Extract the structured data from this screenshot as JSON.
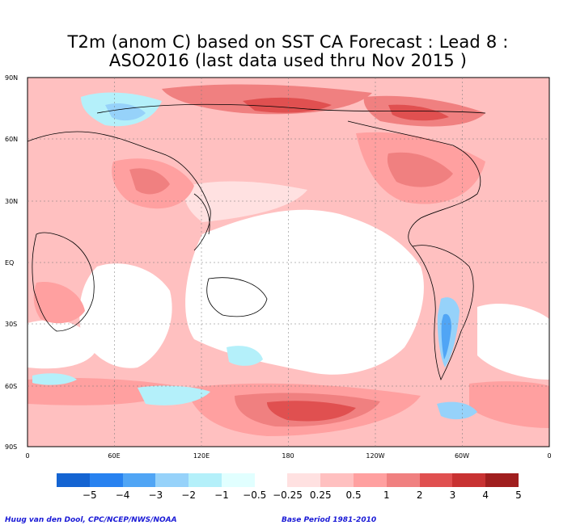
{
  "title_line1": "T2m (anom C) based on SST CA Forecast : Lead 8 :",
  "title_line2": "ASO2016 (last data used thru Nov 2015 )",
  "lat_labels": [
    "90N",
    "60N",
    "30N",
    "EQ",
    "30S",
    "60S",
    "90S"
  ],
  "lon_labels": [
    "0",
    "60E",
    "120E",
    "180",
    "120W",
    "60W",
    "0"
  ],
  "colorbar": {
    "colors": [
      "#1464d2",
      "#2882f0",
      "#50a5f5",
      "#96d2fa",
      "#b4f0fa",
      "#e1ffff",
      "#ffffff",
      "#ffe1e1",
      "#ffc0c0",
      "#ffa0a0",
      "#f08080",
      "#e05050",
      "#c83232",
      "#a01e1e"
    ],
    "labels": [
      "−5",
      "−4",
      "−3",
      "−2",
      "−1",
      "−0.5",
      "−0.25",
      "0.25",
      "0.5",
      "1",
      "2",
      "3",
      "4",
      "5"
    ]
  },
  "footer_left": "Huug van den Dool, CPC/NCEP/NWS/NOAA",
  "footer_right": "Base Period 1981-2010"
}
